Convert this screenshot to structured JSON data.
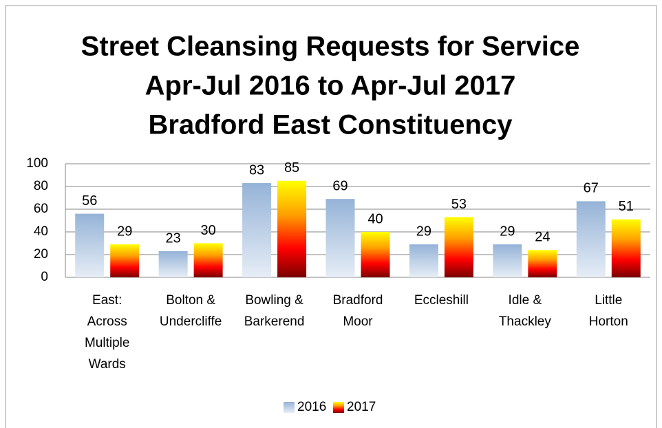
{
  "chart_data": {
    "type": "bar",
    "title": [
      "Street Cleansing Requests for Service",
      "Apr-Jul 2016 to Apr-Jul 2017",
      "Bradford East Constituency"
    ],
    "categories": [
      "East: Across Multiple Wards",
      "Bolton & Undercliffe",
      "Bowling & Barkerend",
      "Bradford Moor",
      "Eccleshill",
      "Idle & Thackley",
      "Little Horton"
    ],
    "series": [
      {
        "name": "2016",
        "color": "#95b3d7",
        "values": [
          56,
          23,
          83,
          69,
          29,
          29,
          67
        ]
      },
      {
        "name": "2017",
        "color": "#ffff00",
        "values": [
          29,
          30,
          85,
          40,
          53,
          24,
          51
        ]
      }
    ],
    "ylim": [
      0,
      100
    ],
    "yticks": [
      0,
      20,
      40,
      60,
      80,
      100
    ],
    "grid": true,
    "legend": "bottom"
  }
}
